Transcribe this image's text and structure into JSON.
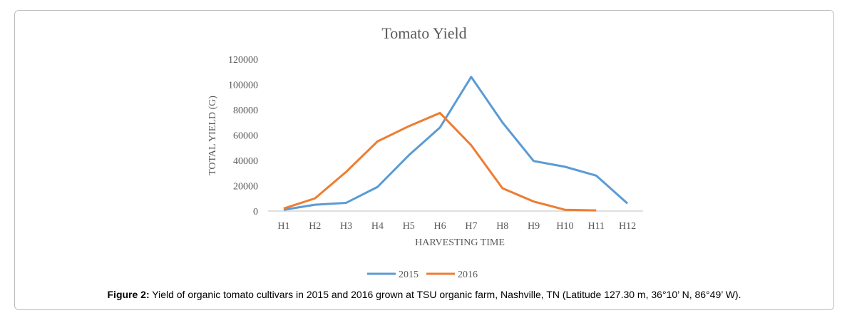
{
  "chart_data": {
    "type": "line",
    "title": "Tomato Yield",
    "x_label": "HARVESTING TIME",
    "y_label": "TOTAL YIELD (G)",
    "categories": [
      "H1",
      "H2",
      "H3",
      "H4",
      "H5",
      "H6",
      "H7",
      "H8",
      "H9",
      "H10",
      "H11",
      "H12"
    ],
    "series": [
      {
        "name": "2015",
        "color": "#5b9bd5",
        "values": [
          1000,
          5000,
          6500,
          19000,
          44000,
          66000,
          106000,
          70000,
          39500,
          35000,
          28000,
          6000
        ]
      },
      {
        "name": "2016",
        "color": "#ed7d31",
        "values": [
          2000,
          10000,
          31000,
          55000,
          67000,
          77500,
          52000,
          18000,
          7500,
          1000,
          500,
          null
        ]
      }
    ],
    "ylim": [
      0,
      120000
    ],
    "yticks": [
      0,
      20000,
      40000,
      60000,
      80000,
      100000,
      120000
    ],
    "grid": false,
    "legend": "bottom"
  },
  "caption": {
    "label": "Figure 2:",
    "text": " Yield of organic tomato cultivars in 2015 and 2016 grown at TSU organic farm, Nashville, TN (Latitude 127.30 m, 36°10’ N, 86°49’ W)."
  }
}
